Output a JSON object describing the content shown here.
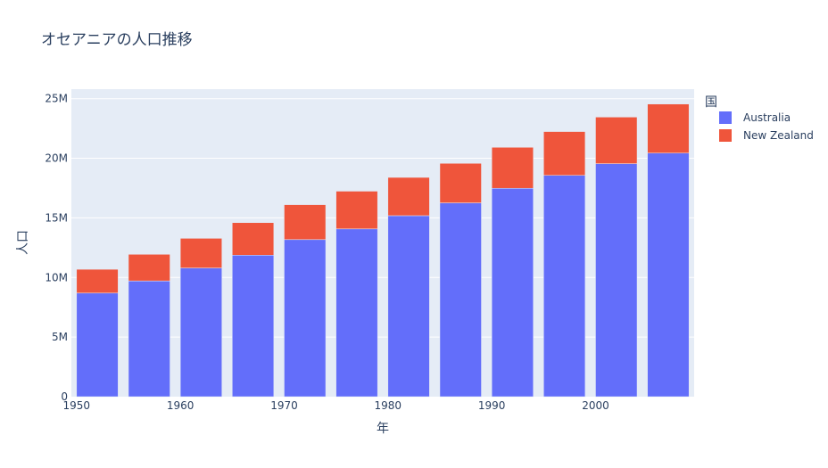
{
  "chart_data": {
    "type": "bar",
    "stacked": true,
    "title": "オセアニアの人口推移",
    "xlabel": "年",
    "ylabel": "人口",
    "x": [
      1952,
      1957,
      1962,
      1967,
      1972,
      1977,
      1982,
      1987,
      1992,
      1997,
      2002,
      2007
    ],
    "series": [
      {
        "name": "Australia",
        "color": "#636efa",
        "values": [
          8691212,
          9712569,
          10794968,
          11872264,
          13177000,
          14074100,
          15184200,
          16257249,
          17481977,
          18565243,
          19546792,
          20434176
        ]
      },
      {
        "name": "New Zealand",
        "color": "#ef553b",
        "values": [
          1994794,
          2229407,
          2488550,
          2728150,
          2929100,
          3164900,
          3210650,
          3317166,
          3437674,
          3676187,
          3908037,
          4115771
        ]
      }
    ],
    "xlim": [
      1949.5,
      2009.5
    ],
    "ylim": [
      0,
      25800000
    ],
    "x_ticks": [
      {
        "v": 1950,
        "label": "1950"
      },
      {
        "v": 1960,
        "label": "1960"
      },
      {
        "v": 1970,
        "label": "1970"
      },
      {
        "v": 1980,
        "label": "1980"
      },
      {
        "v": 1990,
        "label": "1990"
      },
      {
        "v": 2000,
        "label": "2000"
      }
    ],
    "y_ticks": [
      {
        "v": 0,
        "label": "0"
      },
      {
        "v": 5000000,
        "label": "5M"
      },
      {
        "v": 10000000,
        "label": "10M"
      },
      {
        "v": 15000000,
        "label": "15M"
      },
      {
        "v": 20000000,
        "label": "20M"
      },
      {
        "v": 25000000,
        "label": "25M"
      }
    ],
    "legend": {
      "title": "国",
      "position": "right"
    },
    "grid": true,
    "plot_bgcolor": "#e5ecf6"
  }
}
